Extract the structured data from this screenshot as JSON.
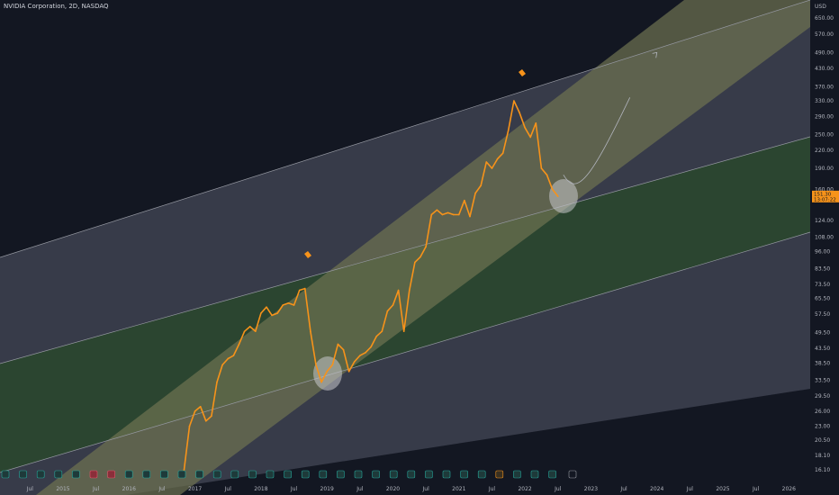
{
  "header": {
    "symbol": "NVIDIA Corporation, 2D, NASDAQ"
  },
  "colors": {
    "background": "#131722",
    "price_line": "#f7931a",
    "channel_band": "#565a6a",
    "middle_band": "#6f7351",
    "green_band": "#2f4a32",
    "price_tag": "#f7931a",
    "marker_circle": "#c8c9cc"
  },
  "chart_data": {
    "type": "line",
    "title": "",
    "xlabel": "",
    "ylabel": "USD",
    "scale": "log",
    "x_tick_labels": [
      "Jul",
      "2015",
      "Jul",
      "2016",
      "Jul",
      "2017",
      "Jul",
      "2018",
      "Jul",
      "2019",
      "Jul",
      "2020",
      "Jul",
      "2021",
      "Jul",
      "2022",
      "Jul",
      "2023",
      "Jul",
      "2024",
      "Jul",
      "2025",
      "Jul",
      "2026"
    ],
    "y_ticks": [
      650,
      570,
      490,
      430,
      370,
      330,
      290,
      250,
      220,
      190,
      160,
      124,
      108,
      96,
      83.5,
      73.5,
      65.5,
      57.5,
      49.5,
      43.5,
      38.5,
      33.5,
      29.5,
      26,
      23,
      20.5,
      18.1,
      16.1
    ],
    "y_tick_labels": [
      "650.00",
      "570.00",
      "490.00",
      "430.00",
      "370.00",
      "330.00",
      "290.00",
      "250.00",
      "220.00",
      "190.00",
      "160.00",
      "124.00",
      "108.00",
      "96.00",
      "83.50",
      "73.50",
      "65.50",
      "57.50",
      "49.50",
      "43.50",
      "38.50",
      "33.50",
      "29.50",
      "26.00",
      "23.00",
      "20.50",
      "18.10",
      "16.10"
    ],
    "last_price_labels": [
      "151.30",
      "13:07:22"
    ],
    "series": [
      {
        "x": [
          "2016-11",
          "2016-12",
          "2017-01",
          "2017-02",
          "2017-03",
          "2017-04",
          "2017-05",
          "2017-06",
          "2017-07",
          "2017-08",
          "2017-09",
          "2017-10",
          "2017-11",
          "2017-12",
          "2018-01",
          "2018-02",
          "2018-03",
          "2018-04",
          "2018-05",
          "2018-06",
          "2018-07",
          "2018-08",
          "2018-09",
          "2018-10",
          "2018-11",
          "2018-12",
          "2019-01",
          "2019-02",
          "2019-03",
          "2019-04",
          "2019-05",
          "2019-06",
          "2019-07",
          "2019-08",
          "2019-09",
          "2019-10",
          "2019-11",
          "2019-12",
          "2020-01",
          "2020-02",
          "2020-03",
          "2020-04",
          "2020-05",
          "2020-06",
          "2020-07",
          "2020-08",
          "2020-09",
          "2020-10",
          "2020-11",
          "2020-12",
          "2021-01",
          "2021-02",
          "2021-03",
          "2021-04",
          "2021-05",
          "2021-06",
          "2021-07",
          "2021-08",
          "2021-09",
          "2021-10",
          "2021-11",
          "2021-12",
          "2022-01",
          "2022-02",
          "2022-03",
          "2022-04",
          "2022-05",
          "2022-06",
          "2022-07"
        ],
        "values": [
          16,
          23,
          26,
          27,
          24,
          25,
          33,
          38,
          40,
          41,
          45,
          50,
          52,
          50,
          58,
          61,
          57,
          58,
          62,
          63,
          62,
          70,
          71,
          50,
          38,
          33,
          36,
          38,
          45,
          43,
          36,
          39,
          41,
          42,
          44,
          48,
          50,
          59,
          62,
          70,
          50,
          70,
          88,
          92,
          100,
          130,
          135,
          130,
          132,
          130,
          130,
          146,
          128,
          155,
          165,
          200,
          190,
          205,
          215,
          260,
          330,
          300,
          265,
          245,
          275,
          190,
          180,
          160,
          151
        ]
      }
    ],
    "projection": {
      "start": "2022-08",
      "end": "2024-01",
      "from_value": 180,
      "to_value": 490
    }
  }
}
